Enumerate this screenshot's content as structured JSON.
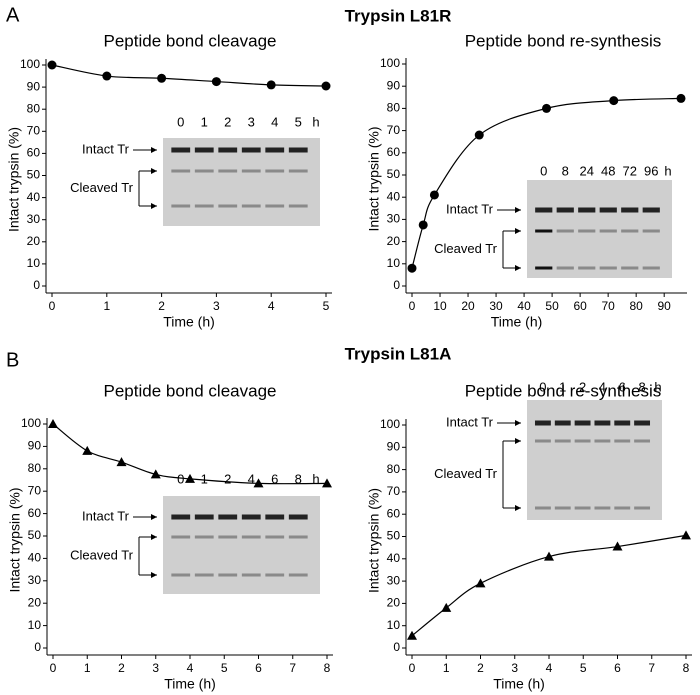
{
  "panels": [
    {
      "label": "A",
      "title": "Trypsin L81R"
    },
    {
      "label": "B",
      "title": "Trypsin L81A"
    }
  ],
  "chart_data": [
    {
      "type": "line",
      "title": "Peptide bond cleavage",
      "x_label": "Time (h)",
      "y_label": "Intact trypsin (%)",
      "x": [
        0,
        1,
        2,
        3,
        4,
        5
      ],
      "series": [
        {
          "color": "#000000",
          "marker": "circle",
          "values": [
            100,
            95,
            94,
            92.5,
            91,
            90.5
          ]
        }
      ],
      "xlim": [
        0,
        5
      ],
      "xticks": [
        0,
        1,
        2,
        3,
        4,
        5
      ],
      "ylim": [
        0,
        100
      ],
      "yticks": [
        0,
        10,
        20,
        30,
        40,
        50,
        60,
        70,
        80,
        90,
        100
      ],
      "inset": {
        "lanes": [
          "0",
          "1",
          "2",
          "3",
          "4",
          "5"
        ],
        "unit": "h",
        "intact_label": "Intact Tr",
        "cleaved_label": "Cleaved Tr"
      }
    },
    {
      "type": "line",
      "title": "Peptide bond re-synthesis",
      "x_label": "Time (h)",
      "y_label": "Intact trypsin (%)",
      "x": [
        0,
        4,
        8,
        24,
        48,
        72,
        96
      ],
      "series": [
        {
          "color": "#000000",
          "marker": "circle",
          "values": [
            8,
            27.5,
            41,
            68,
            80,
            83.5,
            84.5
          ]
        }
      ],
      "xlim": [
        0,
        96
      ],
      "xticks": [
        0,
        10,
        20,
        30,
        40,
        50,
        60,
        70,
        80,
        90
      ],
      "ylim": [
        0,
        100
      ],
      "yticks": [
        0,
        10,
        20,
        30,
        40,
        50,
        60,
        70,
        80,
        90,
        100
      ],
      "inset": {
        "lanes": [
          "0",
          "8",
          "24",
          "48",
          "72",
          "96"
        ],
        "unit": "h",
        "intact_label": "Intact Tr",
        "cleaved_label": "Cleaved Tr"
      }
    },
    {
      "type": "line",
      "title": "Peptide bond cleavage",
      "x_label": "Time (h)",
      "y_label": "Intact trypsin (%)",
      "x": [
        0,
        1,
        2,
        3,
        4,
        6,
        8
      ],
      "series": [
        {
          "color": "#000000",
          "marker": "triangle",
          "values": [
            100,
            88,
            83,
            77.5,
            75.5,
            73.5,
            73.5
          ]
        }
      ],
      "xlim": [
        0,
        8
      ],
      "xticks": [
        0,
        1,
        2,
        3,
        4,
        5,
        6,
        7,
        8
      ],
      "ylim": [
        0,
        100
      ],
      "yticks": [
        0,
        10,
        20,
        30,
        40,
        50,
        60,
        70,
        80,
        90,
        100
      ],
      "inset": {
        "lanes": [
          "0",
          "1",
          "2",
          "4",
          "6",
          "8"
        ],
        "unit": "h",
        "intact_label": "Intact Tr",
        "cleaved_label": "Cleaved Tr"
      }
    },
    {
      "type": "line",
      "title": "Peptide bond re-synthesis",
      "x_label": "Time (h)",
      "y_label": "Intact trypsin (%)",
      "x": [
        0,
        1,
        2,
        4,
        6,
        8
      ],
      "series": [
        {
          "color": "#000000",
          "marker": "triangle",
          "values": [
            5.5,
            18,
            29,
            41,
            45.5,
            50.5
          ]
        }
      ],
      "xlim": [
        0,
        8
      ],
      "xticks": [
        0,
        1,
        2,
        3,
        4,
        5,
        6,
        7,
        8
      ],
      "ylim": [
        0,
        100
      ],
      "yticks": [
        0,
        10,
        20,
        30,
        40,
        50,
        60,
        70,
        80,
        90,
        100
      ],
      "inset": {
        "lanes": [
          "0",
          "1",
          "2",
          "4",
          "6",
          "8"
        ],
        "unit": "h",
        "intact_label": "Intact Tr",
        "cleaved_label": "Cleaved Tr"
      }
    }
  ]
}
